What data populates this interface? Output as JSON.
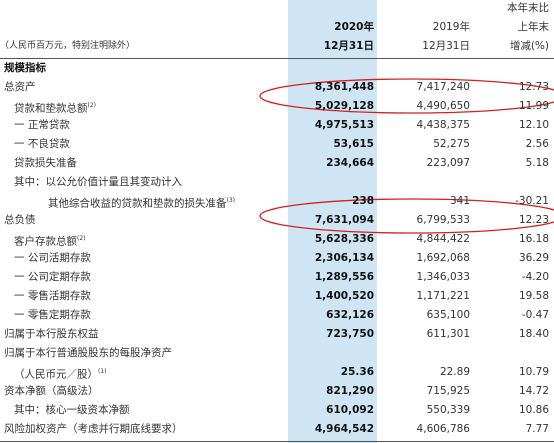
{
  "header": {
    "unit_note": "（人民币百万元，特别注明除外）",
    "columns": [
      [
        "2020年",
        "12月31日"
      ],
      [
        "2019年",
        "12月31日"
      ],
      [
        "本年末比",
        "上年末",
        "增减(%)"
      ]
    ]
  },
  "section": "规模指标",
  "rows": [
    {
      "label": "总资产",
      "values": [
        "8,361,448",
        "7,417,240",
        "12.73"
      ]
    },
    {
      "label": "贷款和垫款总额",
      "ref": "(2)",
      "values": [
        "5,029,128",
        "4,490,650",
        "11.99"
      ]
    },
    {
      "label": "一 正常贷款",
      "values": [
        "4,975,513",
        "4,438,375",
        "12.10"
      ]
    },
    {
      "label": "一 不良贷款",
      "values": [
        "53,615",
        "52,275",
        "2.56"
      ]
    },
    {
      "label": "贷款损失准备",
      "values": [
        "234,664",
        "223,097",
        "5.18"
      ]
    },
    {
      "label": "其中：以公允价值计量且其变动计入"
    },
    {
      "label": "其他综合收益的贷款和垫款的损失准备",
      "ref": "(3)",
      "indent": true,
      "values": [
        "238",
        "341",
        "-30.21"
      ]
    },
    {
      "label": "总负债",
      "values": [
        "7,631,094",
        "6,799,533",
        "12.23"
      ]
    },
    {
      "label": "客户存款总额",
      "ref": "(2)",
      "values": [
        "5,628,336",
        "4,844,422",
        "16.18"
      ]
    },
    {
      "label": "一 公司活期存款",
      "values": [
        "2,306,134",
        "1,692,068",
        "36.29"
      ]
    },
    {
      "label": "一 公司定期存款",
      "values": [
        "1,289,556",
        "1,346,033",
        "-4.20"
      ]
    },
    {
      "label": "一 零售活期存款",
      "values": [
        "1,400,520",
        "1,171,221",
        "19.58"
      ]
    },
    {
      "label": "一 零售定期存款",
      "values": [
        "632,126",
        "635,100",
        "-0.47"
      ]
    },
    {
      "label": "归属于本行股东权益",
      "values": [
        "723,750",
        "611,301",
        "18.40"
      ]
    },
    {
      "label": "归属于本行普通股股东的每股净资产"
    },
    {
      "label": "（人民币元／股）",
      "ref": "(1)",
      "values": [
        "25.36",
        "22.89",
        "10.79"
      ]
    },
    {
      "label": "资本净额（高级法）",
      "values": [
        "821,290",
        "715,925",
        "14.72"
      ]
    },
    {
      "label": "其中：核心一级资本净额",
      "values": [
        "610,092",
        "550,339",
        "10.86"
      ]
    },
    {
      "label": "风险加权资产（考虑并行期底线要求）",
      "values": [
        "4,964,542",
        "4,606,786",
        "7.77"
      ]
    }
  ]
}
